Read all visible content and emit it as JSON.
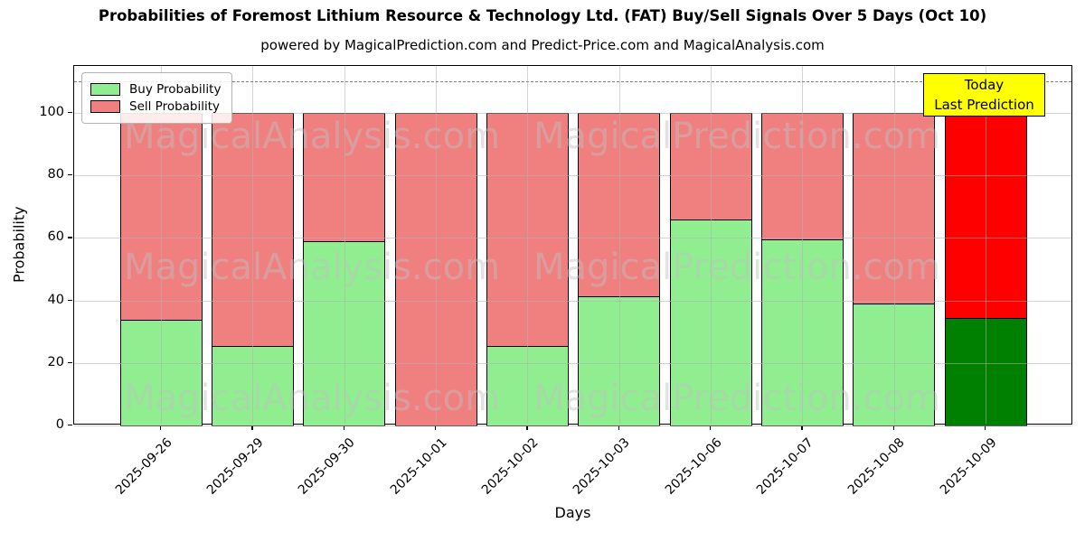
{
  "title": "Probabilities of Foremost Lithium Resource & Technology Ltd. (FAT) Buy/Sell Signals Over 5 Days (Oct 10)",
  "subtitle": "powered by MagicalPrediction.com and Predict-Price.com and MagicalAnalysis.com",
  "axes": {
    "xlabel": "Days",
    "ylabel": "Probability"
  },
  "legend": {
    "items": [
      {
        "label": "Buy Probability",
        "color": "#90EE90"
      },
      {
        "label": "Sell Probability",
        "color": "#F08080"
      }
    ]
  },
  "annotation": {
    "line1": "Today",
    "line2": "Last Prediction",
    "bg_color": "#ffff00"
  },
  "watermarks": [
    {
      "text": "MagicalAnalysis.com"
    },
    {
      "text": "MagicalPrediction.com"
    }
  ],
  "chart_data": {
    "type": "bar",
    "stacked": true,
    "title": "Probabilities of Foremost Lithium Resource & Technology Ltd. (FAT) Buy/Sell Signals Over 5 Days (Oct 10)",
    "xlabel": "Days",
    "ylabel": "Probability",
    "categories": [
      "2025-09-26",
      "2025-09-29",
      "2025-09-30",
      "2025-10-01",
      "2025-10-02",
      "2025-10-03",
      "2025-10-06",
      "2025-10-07",
      "2025-10-08",
      "2025-10-09"
    ],
    "series": [
      {
        "name": "Buy Probability",
        "color": "#90EE90",
        "today_color": "#008000",
        "values": [
          34,
          25.5,
          59,
          0,
          25.5,
          41.5,
          66,
          59.5,
          39,
          34.5
        ]
      },
      {
        "name": "Sell Probability",
        "color": "#F08080",
        "today_color": "#FF0000",
        "values": [
          66,
          74.5,
          41,
          100,
          74.5,
          58.5,
          34,
          40.5,
          61,
          65.5
        ]
      }
    ],
    "today_index": 9,
    "yticks": [
      0,
      20,
      40,
      60,
      80,
      100
    ],
    "ylim": [
      0,
      115
    ],
    "dashed_line_y": 110,
    "grid": true,
    "legend_position": "upper left"
  }
}
